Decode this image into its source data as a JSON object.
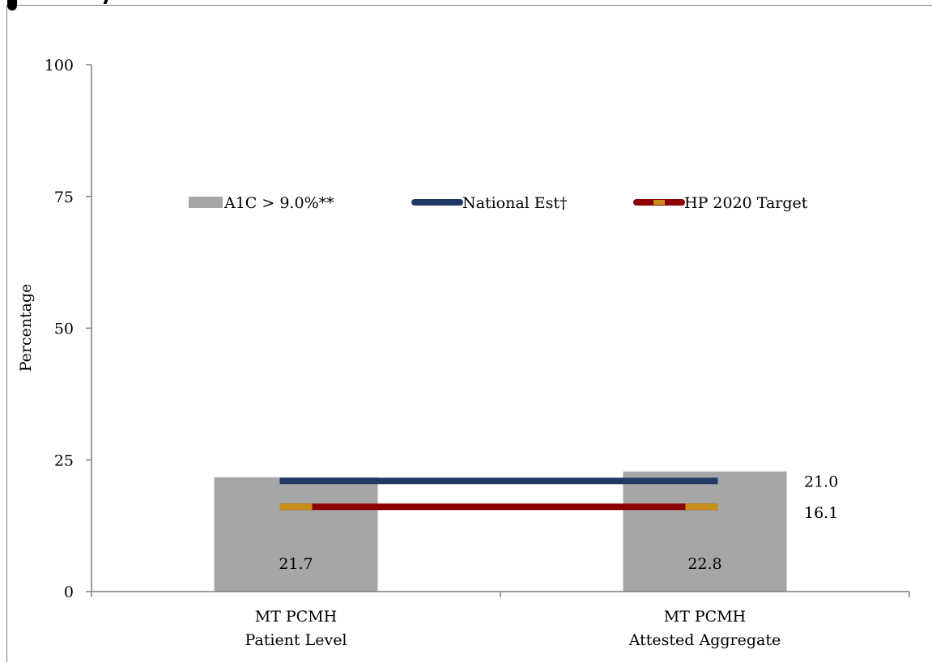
{
  "chart_data": {
    "type": "bar",
    "title": "",
    "ylabel": "Percentage",
    "xlabel": "",
    "ylim": [
      0,
      100
    ],
    "yticks": [
      0,
      25,
      50,
      75,
      100
    ],
    "categories": [
      [
        "MT PCMH",
        "Patient Level"
      ],
      [
        "MT PCMH",
        "Attested Aggregate"
      ]
    ],
    "series": [
      {
        "name": "A1C > 9.0%**",
        "type": "bar",
        "color": "#a6a6a6",
        "values": [
          21.7,
          22.8
        ],
        "value_labels": [
          "21.7",
          "22.8"
        ]
      }
    ],
    "reference_lines": [
      {
        "name": "National Est†",
        "value": 21.0,
        "label": "21.0",
        "color": "#1f3864"
      },
      {
        "name": "HP 2020 Target",
        "value": 16.1,
        "label": "16.1",
        "color": "#8b0000",
        "marker_color": "#c8901a"
      }
    ],
    "legend_position": "upper-center",
    "grid": false
  }
}
